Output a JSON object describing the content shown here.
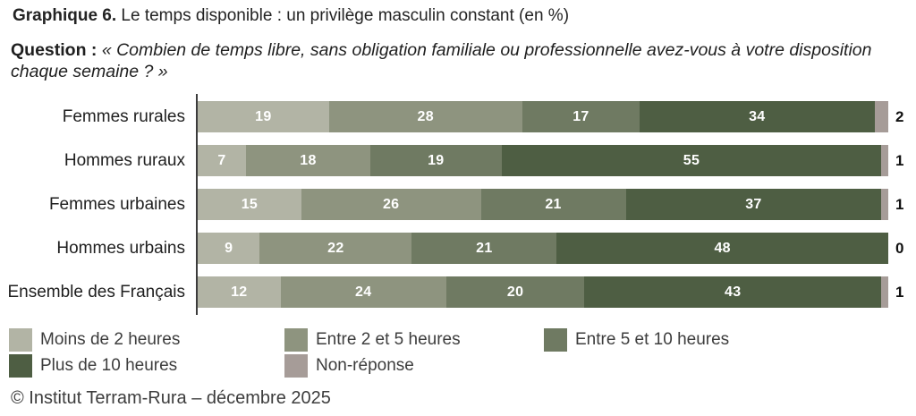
{
  "title": {
    "prefix": "Graphique 6.",
    "text": " Le temps disponible : un privilège masculin constant (en %)"
  },
  "question": {
    "label": "Question :",
    "text": " « Combien de temps libre, sans obligation familiale ou professionnelle avez-vous à votre disposition chaque semaine ? »"
  },
  "footer": "© Institut Terram-Rura – décembre 2025",
  "colors": {
    "axis": "#3c3c3c",
    "value_label_inside": "#ffffff",
    "value_label_outside": "#111111"
  },
  "chart_data": {
    "type": "bar",
    "stacked": true,
    "orientation": "horizontal",
    "title": "Graphique 6. Le temps disponible : un privilège masculin constant (en %)",
    "categories": [
      "Femmes rurales",
      "Hommes ruraux",
      "Femmes urbaines",
      "Hommes urbains",
      "Ensemble des Français"
    ],
    "series": [
      {
        "name": "Moins de 2 heures",
        "color": "#b2b4a5",
        "values": [
          19,
          7,
          15,
          9,
          12
        ]
      },
      {
        "name": "Entre 2 et 5 heures",
        "color": "#8e947f",
        "values": [
          28,
          18,
          26,
          22,
          24
        ]
      },
      {
        "name": "Entre 5 et 10 heures",
        "color": "#6f7a62",
        "values": [
          17,
          19,
          21,
          21,
          20
        ]
      },
      {
        "name": "Plus de 10 heures",
        "color": "#4e5e43",
        "values": [
          34,
          55,
          37,
          48,
          43
        ]
      },
      {
        "name": "Non-réponse",
        "color": "#a69c98",
        "values": [
          2,
          1,
          1,
          0,
          1
        ],
        "label_outside": true
      }
    ],
    "xlim": [
      0,
      100
    ],
    "value_labels": "inside-white-bold, non-response shown outside right in black",
    "legend_position": "bottom-left, 3 columns x 2 rows",
    "grid": false
  }
}
